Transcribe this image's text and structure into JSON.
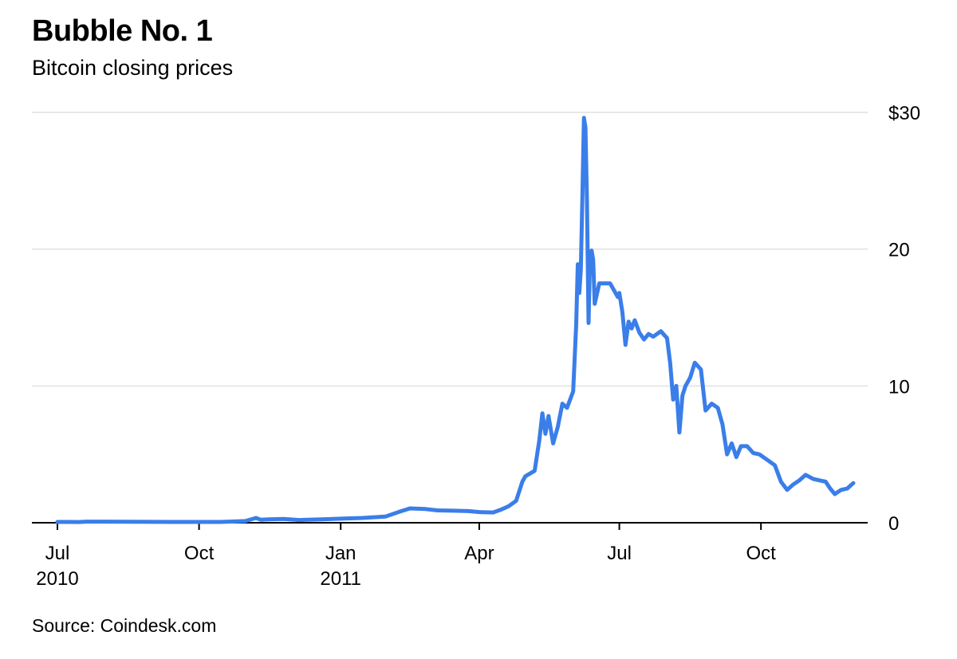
{
  "header": {
    "title": "Bubble No. 1",
    "subtitle": "Bitcoin closing prices"
  },
  "footer": {
    "source": "Source: Coindesk.com"
  },
  "colors": {
    "series": "#3a7ee9"
  },
  "chart_data": {
    "type": "line",
    "title": "Bubble No. 1",
    "subtitle": "Bitcoin closing prices",
    "xlabel": "",
    "ylabel": "",
    "x_range": [
      "2010-07-01",
      "2011-11-30"
    ],
    "ylim": [
      0,
      30
    ],
    "y_ticks": [
      {
        "value": 30,
        "label": "$30"
      },
      {
        "value": 20,
        "label": "20"
      },
      {
        "value": 10,
        "label": "10"
      },
      {
        "value": 0,
        "label": "0"
      }
    ],
    "x_ticks": [
      {
        "date": "2010-07-01",
        "label": "Jul",
        "sublabel": "2010"
      },
      {
        "date": "2010-10-01",
        "label": "Oct",
        "sublabel": ""
      },
      {
        "date": "2011-01-01",
        "label": "Jan",
        "sublabel": "2011"
      },
      {
        "date": "2011-04-01",
        "label": "Apr",
        "sublabel": ""
      },
      {
        "date": "2011-07-01",
        "label": "Jul",
        "sublabel": ""
      },
      {
        "date": "2011-10-01",
        "label": "Oct",
        "sublabel": ""
      }
    ],
    "grid": true,
    "series": [
      {
        "name": "Bitcoin closing price",
        "points": [
          [
            "2010-07-01",
            0.06
          ],
          [
            "2010-07-10",
            0.06
          ],
          [
            "2010-07-15",
            0.05
          ],
          [
            "2010-07-20",
            0.08
          ],
          [
            "2010-08-15",
            0.07
          ],
          [
            "2010-09-15",
            0.06
          ],
          [
            "2010-10-15",
            0.06
          ],
          [
            "2010-10-31",
            0.12
          ],
          [
            "2010-11-07",
            0.35
          ],
          [
            "2010-11-10",
            0.22
          ],
          [
            "2010-11-15",
            0.25
          ],
          [
            "2010-11-25",
            0.28
          ],
          [
            "2010-12-05",
            0.2
          ],
          [
            "2010-12-20",
            0.25
          ],
          [
            "2011-01-01",
            0.3
          ],
          [
            "2011-01-15",
            0.35
          ],
          [
            "2011-01-30",
            0.45
          ],
          [
            "2011-02-08",
            0.8
          ],
          [
            "2011-02-15",
            1.05
          ],
          [
            "2011-02-25",
            1.0
          ],
          [
            "2011-03-05",
            0.9
          ],
          [
            "2011-03-15",
            0.88
          ],
          [
            "2011-03-25",
            0.85
          ],
          [
            "2011-04-01",
            0.78
          ],
          [
            "2011-04-10",
            0.75
          ],
          [
            "2011-04-15",
            0.95
          ],
          [
            "2011-04-20",
            1.2
          ],
          [
            "2011-04-25",
            1.6
          ],
          [
            "2011-04-29",
            3.0
          ],
          [
            "2011-05-01",
            3.4
          ],
          [
            "2011-05-07",
            3.8
          ],
          [
            "2011-05-10",
            6.0
          ],
          [
            "2011-05-12",
            8.0
          ],
          [
            "2011-05-14",
            6.5
          ],
          [
            "2011-05-16",
            7.8
          ],
          [
            "2011-05-19",
            5.8
          ],
          [
            "2011-05-22",
            7.0
          ],
          [
            "2011-05-25",
            8.7
          ],
          [
            "2011-05-28",
            8.4
          ],
          [
            "2011-06-01",
            9.6
          ],
          [
            "2011-06-03",
            14.5
          ],
          [
            "2011-06-04",
            18.9
          ],
          [
            "2011-06-05",
            16.8
          ],
          [
            "2011-06-06",
            18.5
          ],
          [
            "2011-06-07",
            23.9
          ],
          [
            "2011-06-08",
            29.6
          ],
          [
            "2011-06-09",
            28.9
          ],
          [
            "2011-06-10",
            23.5
          ],
          [
            "2011-06-11",
            14.6
          ],
          [
            "2011-06-12",
            19.5
          ],
          [
            "2011-06-13",
            19.9
          ],
          [
            "2011-06-14",
            19.2
          ],
          [
            "2011-06-15",
            16.0
          ],
          [
            "2011-06-18",
            17.5
          ],
          [
            "2011-06-25",
            17.5
          ],
          [
            "2011-06-30",
            16.5
          ],
          [
            "2011-07-01",
            16.8
          ],
          [
            "2011-07-03",
            15.4
          ],
          [
            "2011-07-05",
            13.0
          ],
          [
            "2011-07-07",
            14.7
          ],
          [
            "2011-07-09",
            14.2
          ],
          [
            "2011-07-11",
            14.8
          ],
          [
            "2011-07-14",
            13.9
          ],
          [
            "2011-07-17",
            13.4
          ],
          [
            "2011-07-20",
            13.8
          ],
          [
            "2011-07-23",
            13.6
          ],
          [
            "2011-07-28",
            14.0
          ],
          [
            "2011-08-01",
            13.5
          ],
          [
            "2011-08-03",
            11.7
          ],
          [
            "2011-08-05",
            9.0
          ],
          [
            "2011-08-07",
            10.0
          ],
          [
            "2011-08-09",
            6.6
          ],
          [
            "2011-08-11",
            9.3
          ],
          [
            "2011-08-13",
            10.0
          ],
          [
            "2011-08-16",
            10.6
          ],
          [
            "2011-08-19",
            11.7
          ],
          [
            "2011-08-23",
            11.2
          ],
          [
            "2011-08-26",
            8.2
          ],
          [
            "2011-08-30",
            8.7
          ],
          [
            "2011-09-03",
            8.4
          ],
          [
            "2011-09-06",
            7.2
          ],
          [
            "2011-09-09",
            5.0
          ],
          [
            "2011-09-12",
            5.8
          ],
          [
            "2011-09-15",
            4.8
          ],
          [
            "2011-09-18",
            5.6
          ],
          [
            "2011-09-22",
            5.6
          ],
          [
            "2011-09-26",
            5.1
          ],
          [
            "2011-09-30",
            5.0
          ],
          [
            "2011-10-05",
            4.6
          ],
          [
            "2011-10-10",
            4.2
          ],
          [
            "2011-10-14",
            3.0
          ],
          [
            "2011-10-18",
            2.4
          ],
          [
            "2011-10-22",
            2.8
          ],
          [
            "2011-10-26",
            3.1
          ],
          [
            "2011-10-30",
            3.5
          ],
          [
            "2011-11-04",
            3.2
          ],
          [
            "2011-11-08",
            3.1
          ],
          [
            "2011-11-12",
            3.0
          ],
          [
            "2011-11-15",
            2.5
          ],
          [
            "2011-11-18",
            2.1
          ],
          [
            "2011-11-22",
            2.4
          ],
          [
            "2011-11-26",
            2.5
          ],
          [
            "2011-11-30",
            2.9
          ]
        ]
      }
    ]
  }
}
